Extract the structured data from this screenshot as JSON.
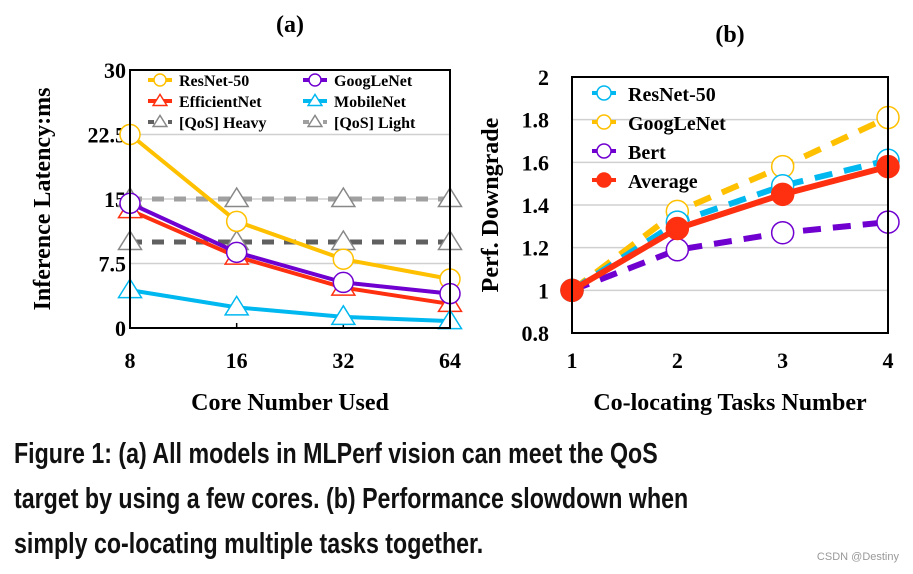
{
  "chart_data": [
    {
      "panel": "(a)",
      "type": "line",
      "xlabel": "Core Number Used",
      "ylabel": "Inference Latency:ms",
      "categories": [
        "8",
        "16",
        "32",
        "64"
      ],
      "ylim": [
        0,
        30
      ],
      "yticks": [
        "0",
        "7.5",
        "15",
        "22.5",
        "30"
      ],
      "grid": true,
      "legend": "top",
      "series": [
        {
          "name": "ResNet-50",
          "values": [
            22.5,
            12.4,
            8.0,
            5.7
          ],
          "color": "#FFC000",
          "marker": "circle",
          "dash": false
        },
        {
          "name": "GoogLeNet",
          "values": [
            14.5,
            8.8,
            5.3,
            4.0
          ],
          "color": "#7000D0",
          "marker": "circle",
          "dash": false
        },
        {
          "name": "EfficientNet",
          "values": [
            13.7,
            8.3,
            4.7,
            2.8
          ],
          "color": "#FF3010",
          "marker": "triangle",
          "dash": false
        },
        {
          "name": "MobileNet",
          "values": [
            4.4,
            2.4,
            1.3,
            0.8
          ],
          "color": "#00B8F0",
          "marker": "triangle",
          "dash": false
        },
        {
          "name": "[QoS] Heavy",
          "values": [
            10,
            10,
            10,
            10
          ],
          "color": "#606060",
          "marker": "triangle",
          "dash": true
        },
        {
          "name": "[QoS] Light",
          "values": [
            15,
            15,
            15,
            15
          ],
          "color": "#A0A0A0",
          "marker": "triangle",
          "dash": true
        }
      ]
    },
    {
      "panel": "(b)",
      "type": "line",
      "xlabel": "Co-locating Tasks Number",
      "ylabel": "Perf. Downgrade",
      "categories": [
        "1",
        "2",
        "3",
        "4"
      ],
      "ylim": [
        0.8,
        2
      ],
      "yticks": [
        "0.8",
        "1",
        "1.2",
        "1.4",
        "1.6",
        "1.8",
        "2"
      ],
      "grid": true,
      "legend": "top-left",
      "series": [
        {
          "name": "ResNet-50",
          "values": [
            1,
            1.32,
            1.49,
            1.61
          ],
          "color": "#00B8F0",
          "marker": "circle",
          "dash": true
        },
        {
          "name": "GoogLeNet",
          "values": [
            1,
            1.37,
            1.58,
            1.81
          ],
          "color": "#FFC000",
          "marker": "circle",
          "dash": true
        },
        {
          "name": "Bert",
          "values": [
            1,
            1.19,
            1.27,
            1.32
          ],
          "color": "#7000D0",
          "marker": "circle",
          "dash": true
        },
        {
          "name": "Average",
          "values": [
            1,
            1.29,
            1.45,
            1.58
          ],
          "color": "#FF3010",
          "marker": "filled-circle",
          "dash": false
        }
      ]
    }
  ],
  "caption": {
    "line1": "Figure 1:   (a) All models in MLPerf vision can meet the QoS",
    "line2": "target by using a few cores. (b) Performance slowdown when",
    "line3": "simply co-locating multiple tasks together."
  },
  "watermark": "CSDN @Destiny"
}
